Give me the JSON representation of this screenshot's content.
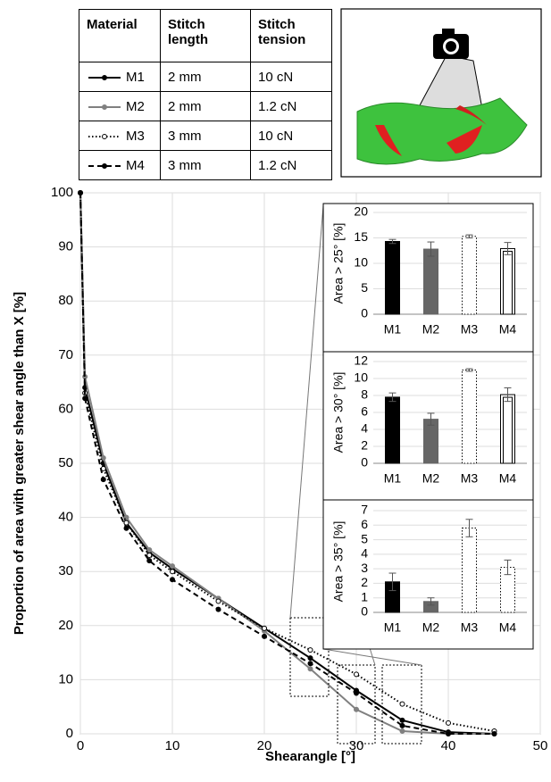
{
  "table": {
    "header": [
      "Material",
      "Stitch length",
      "Stitch tension"
    ],
    "rows": [
      [
        "M1",
        "2 mm",
        "10 cN"
      ],
      [
        "M2",
        "2 mm",
        "1.2 cN"
      ],
      [
        "M3",
        "3 mm",
        "10 cN"
      ],
      [
        "M4",
        "3 mm",
        "1.2 cN"
      ]
    ]
  },
  "chart_data": [
    {
      "type": "line",
      "xlabel": "Shearangle [°]",
      "ylabel": "Proportion of area with greater shear angle than X [%]",
      "xlim": [
        0,
        50
      ],
      "xticks": [
        0,
        10,
        20,
        30,
        40,
        50
      ],
      "ylim": [
        0,
        100
      ],
      "yticks": [
        0,
        10,
        20,
        30,
        40,
        50,
        60,
        70,
        80,
        90,
        100
      ],
      "grid": true,
      "x": [
        0,
        0.5,
        2.5,
        5,
        7.5,
        10,
        15,
        20,
        25,
        30,
        35,
        40,
        45
      ],
      "series": [
        {
          "color": "#000000",
          "dash": "solid",
          "marker_fill": "#000000",
          "values": [
            100,
            64,
            50,
            39,
            33.5,
            30.5,
            25,
            19.5,
            14,
            8,
            2.5,
            0.3,
            0
          ]
        },
        {
          "color": "#808080",
          "dash": "solid",
          "marker_fill": "#808080",
          "values": [
            100,
            66,
            51,
            40,
            34,
            31,
            25,
            19,
            12,
            4.5,
            0.5,
            0,
            0
          ]
        },
        {
          "color": "#000000",
          "dash": "dotted",
          "marker_fill": "#ffffff",
          "values": [
            100,
            63,
            49,
            39,
            33,
            30,
            24.5,
            19.5,
            15.5,
            11,
            5.5,
            2,
            0.5
          ]
        },
        {
          "color": "#000000",
          "dash": "dashed",
          "marker_fill": "#000000",
          "values": [
            100,
            62,
            47,
            38,
            32,
            28.5,
            23,
            18,
            13,
            7.5,
            1.5,
            0,
            0
          ]
        }
      ]
    },
    {
      "type": "bar",
      "ylabel": "Area > 25° [%]",
      "categories": [
        "M1",
        "M2",
        "M3",
        "M4"
      ],
      "values": [
        14.3,
        12.8,
        15.3,
        12.9
      ],
      "errors": [
        0.4,
        1.4,
        0.3,
        1.2
      ],
      "colors": [
        "#000000",
        "#666666",
        "#000000",
        "#000000"
      ],
      "bar_styles": [
        "solid",
        "solid",
        "dotted",
        "outline"
      ],
      "ylim": [
        0,
        20
      ],
      "yticks": [
        0,
        5,
        10,
        15,
        20
      ],
      "grid": true
    },
    {
      "type": "bar",
      "ylabel": "Area > 30° [%]",
      "categories": [
        "M1",
        "M2",
        "M3",
        "M4"
      ],
      "values": [
        7.8,
        5.2,
        11.0,
        8.1
      ],
      "errors": [
        0.5,
        0.7,
        0.15,
        0.8
      ],
      "colors": [
        "#000000",
        "#666666",
        "#000000",
        "#000000"
      ],
      "bar_styles": [
        "solid",
        "solid",
        "dotted",
        "outline"
      ],
      "ylim": [
        0,
        12
      ],
      "yticks": [
        0,
        2,
        4,
        6,
        8,
        10,
        12
      ],
      "grid": true
    },
    {
      "type": "bar",
      "ylabel": "Area > 35° [%]",
      "categories": [
        "M1",
        "M2",
        "M3",
        "M4"
      ],
      "values": [
        2.1,
        0.75,
        5.8,
        3.1
      ],
      "errors": [
        0.6,
        0.25,
        0.6,
        0.5
      ],
      "colors": [
        "#000000",
        "#666666",
        "#000000",
        "#000000"
      ],
      "bar_styles": [
        "solid",
        "solid",
        "dotted",
        "dotted"
      ],
      "ylim": [
        0,
        7
      ],
      "yticks": [
        0,
        1,
        2,
        3,
        4,
        5,
        6,
        7
      ],
      "grid": true
    }
  ]
}
